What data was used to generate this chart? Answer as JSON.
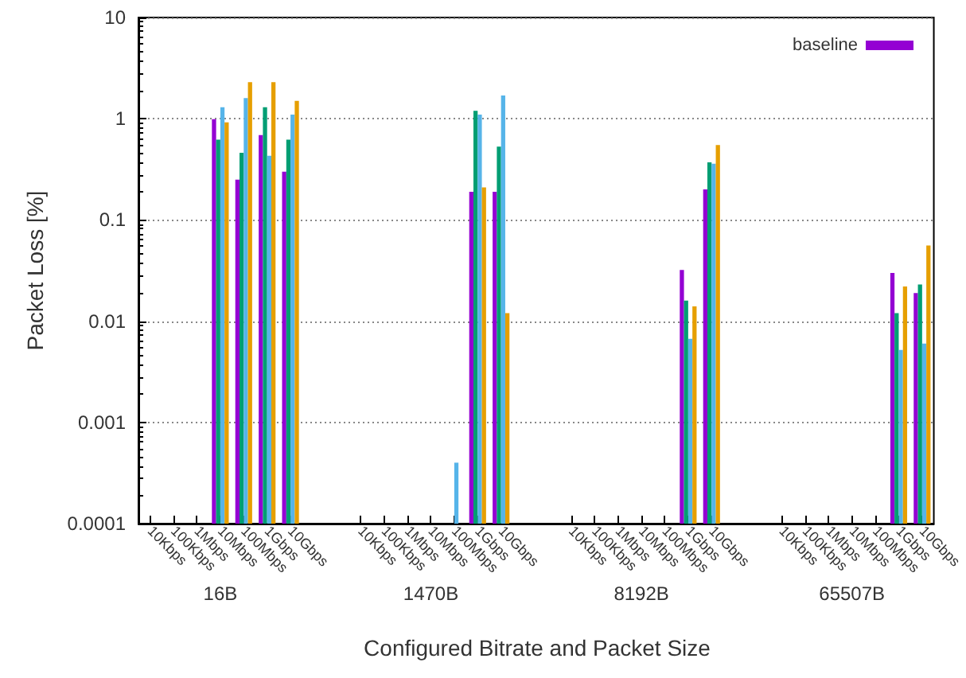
{
  "chart_data": {
    "type": "bar",
    "xlabel": "Configured Bitrate and Packet Size",
    "ylabel": "Packet Loss [%]",
    "categories": [
      "10Kbps",
      "100Kbps",
      "1Mbps",
      "10Mbps",
      "100Mbps",
      "1Gbps",
      "10Gbps",
      null,
      null,
      "10Kbps",
      "100Kbps",
      "1Mbps",
      "10Mbps",
      "100Mbps",
      "1Gbps",
      "10Gbps",
      null,
      null,
      "10Kbps",
      "100Kbps",
      "1Mbps",
      "10Mbps",
      "100Mbps",
      "1Gbps",
      "10Gbps",
      null,
      null,
      "10Kbps",
      "100Kbps",
      "1Mbps",
      "10Mbps",
      "100Mbps",
      "1Gbps",
      "10Gbps"
    ],
    "annotations": [
      "16B",
      "1470B",
      "8192B",
      "65507B"
    ],
    "series": [
      {
        "name": "baseline",
        "color": "#9400d3",
        "values": [
          null,
          null,
          null,
          0.99,
          0.25,
          0.69,
          0.3,
          null,
          null,
          null,
          null,
          null,
          null,
          null,
          0.19,
          0.19,
          null,
          null,
          null,
          null,
          null,
          null,
          null,
          0.032,
          0.2,
          null,
          null,
          null,
          null,
          null,
          null,
          null,
          0.03,
          0.019
        ]
      },
      {
        "color": "#009e73",
        "values": [
          null,
          null,
          null,
          0.62,
          0.46,
          1.3,
          0.62,
          null,
          null,
          null,
          null,
          null,
          null,
          null,
          1.2,
          0.53,
          null,
          null,
          null,
          null,
          null,
          null,
          null,
          0.016,
          0.37,
          null,
          null,
          null,
          null,
          null,
          null,
          null,
          0.012,
          0.023
        ]
      },
      {
        "color": "#56b4e9",
        "values": [
          null,
          null,
          null,
          1.3,
          1.6,
          0.43,
          1.1,
          null,
          null,
          null,
          null,
          null,
          null,
          0.0004,
          1.1,
          1.7,
          null,
          null,
          null,
          null,
          null,
          null,
          null,
          0.0067,
          0.36,
          null,
          null,
          null,
          null,
          null,
          null,
          null,
          0.0052,
          0.006
        ]
      },
      {
        "color": "#e69f00",
        "values": [
          null,
          null,
          null,
          0.92,
          2.3,
          2.3,
          1.5,
          null,
          null,
          null,
          null,
          null,
          null,
          null,
          0.21,
          0.012,
          null,
          null,
          null,
          null,
          null,
          null,
          null,
          0.014,
          0.55,
          null,
          null,
          null,
          null,
          null,
          null,
          null,
          0.022,
          0.056
        ]
      }
    ],
    "log": "y",
    "ylim": [
      0.0001,
      10
    ],
    "yticks": [
      0.0001,
      0.001,
      0.01,
      0.1,
      1,
      10
    ],
    "grid": "y",
    "legend": "top right"
  }
}
